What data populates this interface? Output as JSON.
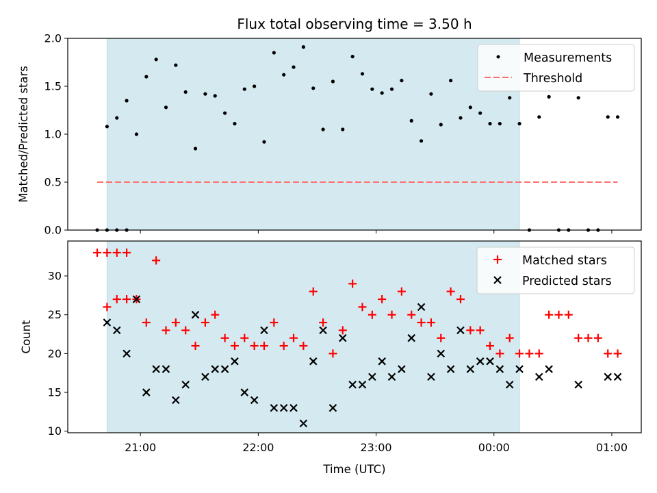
{
  "chart_data": [
    {
      "type": "scatter",
      "title": "Flux total observing time = 3.50 h",
      "ylabel": "Matched/Predicted stars",
      "xlabel": "",
      "xlim": [
        "20:23",
        "01:15"
      ],
      "ylim": [
        0,
        2.0
      ],
      "yticks": [
        0.0,
        0.5,
        1.0,
        1.5,
        2.0
      ],
      "ytick_labels": [
        "0.0",
        "0.5",
        "1.0",
        "1.5",
        "2.0"
      ],
      "grid": false,
      "legend": "top-right",
      "shaded_window": {
        "start": "20:43",
        "end": "00:13",
        "color": "#d4eaf0"
      },
      "series": [
        {
          "name": "Measurements",
          "marker": "dot",
          "color": "#000000",
          "points": [
            [
              "20:38",
              0
            ],
            [
              "20:43",
              0
            ],
            [
              "20:48",
              0
            ],
            [
              "20:53",
              0
            ],
            [
              "20:43",
              1.08
            ],
            [
              "20:48",
              1.17
            ],
            [
              "20:53",
              1.35
            ],
            [
              "20:58",
              1.0
            ],
            [
              "21:03",
              1.6
            ],
            [
              "21:08",
              1.78
            ],
            [
              "21:13",
              1.28
            ],
            [
              "21:18",
              1.72
            ],
            [
              "21:23",
              1.44
            ],
            [
              "21:28",
              0.85
            ],
            [
              "21:33",
              1.42
            ],
            [
              "21:38",
              1.4
            ],
            [
              "21:43",
              1.22
            ],
            [
              "21:48",
              1.11
            ],
            [
              "21:53",
              1.47
            ],
            [
              "21:58",
              1.5
            ],
            [
              "22:03",
              0.92
            ],
            [
              "22:08",
              1.85
            ],
            [
              "22:13",
              1.62
            ],
            [
              "22:18",
              1.7
            ],
            [
              "22:23",
              1.91
            ],
            [
              "22:28",
              1.48
            ],
            [
              "22:33",
              1.05
            ],
            [
              "22:38",
              1.55
            ],
            [
              "22:43",
              1.05
            ],
            [
              "22:48",
              1.81
            ],
            [
              "22:53",
              1.63
            ],
            [
              "22:58",
              1.47
            ],
            [
              "23:03",
              1.43
            ],
            [
              "23:08",
              1.47
            ],
            [
              "23:13",
              1.56
            ],
            [
              "23:18",
              1.14
            ],
            [
              "23:23",
              0.93
            ],
            [
              "23:28",
              1.42
            ],
            [
              "23:33",
              1.1
            ],
            [
              "23:38",
              1.56
            ],
            [
              "23:43",
              1.17
            ],
            [
              "23:48",
              1.28
            ],
            [
              "23:53",
              1.22
            ],
            [
              "23:58",
              1.11
            ],
            [
              "00:03",
              1.11
            ],
            [
              "00:08",
              1.38
            ],
            [
              "00:13",
              1.11
            ],
            [
              "00:18",
              0
            ],
            [
              "00:23",
              1.18
            ],
            [
              "00:28",
              1.39
            ],
            [
              "00:33",
              0
            ],
            [
              "00:38",
              0
            ],
            [
              "00:43",
              1.38
            ],
            [
              "00:48",
              0
            ],
            [
              "00:53",
              0
            ],
            [
              "00:58",
              1.18
            ],
            [
              "01:03",
              1.18
            ]
          ]
        },
        {
          "name": "Threshold",
          "marker": "dashed-line",
          "color": "#ff7070",
          "points": [
            [
              "20:38",
              0.5
            ],
            [
              "01:03",
              0.5
            ]
          ]
        }
      ]
    },
    {
      "type": "scatter",
      "title": "",
      "ylabel": "Count",
      "xlabel": "Time (UTC)",
      "xlim": [
        "20:23",
        "01:15"
      ],
      "ylim": [
        9.8,
        34.5
      ],
      "yticks": [
        10,
        15,
        20,
        25,
        30
      ],
      "ytick_labels": [
        "10",
        "15",
        "20",
        "25",
        "30"
      ],
      "xticks": [
        "21:00",
        "22:00",
        "23:00",
        "00:00",
        "01:00"
      ],
      "xtick_labels": [
        "21:00",
        "22:00",
        "23:00",
        "00:00",
        "01:00"
      ],
      "grid": false,
      "legend": "top-right",
      "shaded_window": {
        "start": "20:43",
        "end": "00:13",
        "color": "#d4eaf0"
      },
      "series": [
        {
          "name": "Matched stars",
          "marker": "plus",
          "color": "#ff0000",
          "points": [
            [
              "20:38",
              33
            ],
            [
              "20:43",
              33
            ],
            [
              "20:48",
              33
            ],
            [
              "20:53",
              33
            ],
            [
              "20:43",
              26
            ],
            [
              "20:48",
              27
            ],
            [
              "20:53",
              27
            ],
            [
              "20:58",
              27
            ],
            [
              "21:03",
              24
            ],
            [
              "21:08",
              32
            ],
            [
              "21:13",
              23
            ],
            [
              "21:18",
              24
            ],
            [
              "21:23",
              23
            ],
            [
              "21:28",
              21
            ],
            [
              "21:33",
              24
            ],
            [
              "21:38",
              25
            ],
            [
              "21:43",
              22
            ],
            [
              "21:48",
              21
            ],
            [
              "21:53",
              22
            ],
            [
              "21:58",
              21
            ],
            [
              "22:03",
              21
            ],
            [
              "22:08",
              24
            ],
            [
              "22:13",
              21
            ],
            [
              "22:18",
              22
            ],
            [
              "22:23",
              21
            ],
            [
              "22:28",
              28
            ],
            [
              "22:33",
              24
            ],
            [
              "22:38",
              20
            ],
            [
              "22:43",
              23
            ],
            [
              "22:48",
              29
            ],
            [
              "22:53",
              26
            ],
            [
              "22:58",
              25
            ],
            [
              "23:03",
              27
            ],
            [
              "23:08",
              25
            ],
            [
              "23:13",
              28
            ],
            [
              "23:18",
              25
            ],
            [
              "23:23",
              24
            ],
            [
              "23:28",
              24
            ],
            [
              "23:33",
              22
            ],
            [
              "23:38",
              28
            ],
            [
              "23:43",
              27
            ],
            [
              "23:48",
              23
            ],
            [
              "23:53",
              23
            ],
            [
              "23:58",
              21
            ],
            [
              "00:03",
              20
            ],
            [
              "00:08",
              22
            ],
            [
              "00:13",
              20
            ],
            [
              "00:18",
              20
            ],
            [
              "00:23",
              20
            ],
            [
              "00:28",
              25
            ],
            [
              "00:33",
              25
            ],
            [
              "00:38",
              25
            ],
            [
              "00:43",
              22
            ],
            [
              "00:48",
              22
            ],
            [
              "00:53",
              22
            ],
            [
              "00:58",
              20
            ],
            [
              "01:03",
              20
            ]
          ]
        },
        {
          "name": "Predicted stars",
          "marker": "x",
          "color": "#000000",
          "points": [
            [
              "20:43",
              24
            ],
            [
              "20:48",
              23
            ],
            [
              "20:53",
              20
            ],
            [
              "20:58",
              27
            ],
            [
              "21:03",
              15
            ],
            [
              "21:08",
              18
            ],
            [
              "21:13",
              18
            ],
            [
              "21:18",
              14
            ],
            [
              "21:23",
              16
            ],
            [
              "21:28",
              25
            ],
            [
              "21:33",
              17
            ],
            [
              "21:38",
              18
            ],
            [
              "21:43",
              18
            ],
            [
              "21:48",
              19
            ],
            [
              "21:53",
              15
            ],
            [
              "21:58",
              14
            ],
            [
              "22:03",
              23
            ],
            [
              "22:08",
              13
            ],
            [
              "22:13",
              13
            ],
            [
              "22:18",
              13
            ],
            [
              "22:23",
              11
            ],
            [
              "22:28",
              19
            ],
            [
              "22:33",
              23
            ],
            [
              "22:38",
              13
            ],
            [
              "22:43",
              22
            ],
            [
              "22:48",
              16
            ],
            [
              "22:53",
              16
            ],
            [
              "22:58",
              17
            ],
            [
              "23:03",
              19
            ],
            [
              "23:08",
              17
            ],
            [
              "23:13",
              18
            ],
            [
              "23:18",
              22
            ],
            [
              "23:23",
              26
            ],
            [
              "23:28",
              17
            ],
            [
              "23:33",
              20
            ],
            [
              "23:38",
              18
            ],
            [
              "23:43",
              23
            ],
            [
              "23:48",
              18
            ],
            [
              "23:53",
              19
            ],
            [
              "23:58",
              19
            ],
            [
              "00:03",
              18
            ],
            [
              "00:08",
              16
            ],
            [
              "00:13",
              18
            ],
            [
              "00:23",
              17
            ],
            [
              "00:28",
              18
            ],
            [
              "00:43",
              16
            ],
            [
              "00:58",
              17
            ],
            [
              "01:03",
              17
            ]
          ]
        }
      ]
    }
  ]
}
